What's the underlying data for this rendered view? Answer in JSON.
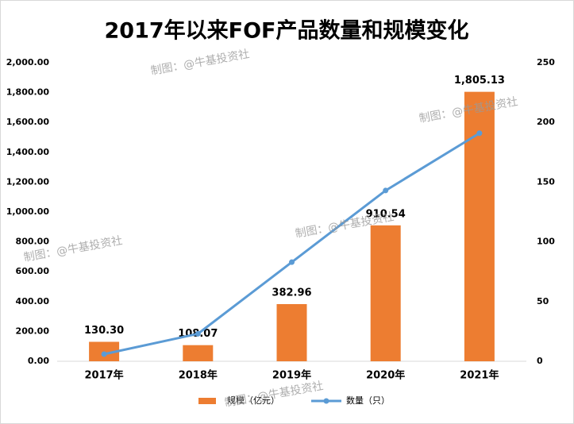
{
  "chart_data": {
    "type": "bar",
    "title": "2017年以来FOF产品数量和规模变化",
    "watermark": "制图：@牛基投资社",
    "categories": [
      "2017年",
      "2018年",
      "2019年",
      "2020年",
      "2021年"
    ],
    "series": [
      {
        "name": "规模（亿元）",
        "type": "bar",
        "color": "#ed7d31",
        "values": [
          130.3,
          108.07,
          382.96,
          910.54,
          1805.13
        ],
        "value_labels": [
          "130.30",
          "108.07",
          "382.96",
          "910.54",
          "1,805.13"
        ]
      },
      {
        "name": "数量（只）",
        "type": "line",
        "axis": "y2",
        "color": "#5b9bd5",
        "values": [
          6,
          23,
          83,
          143,
          191
        ]
      }
    ],
    "ylim": [
      0,
      2000
    ],
    "yticks": [
      {
        "value": 0,
        "label": "0.00"
      },
      {
        "value": 200,
        "label": "200.00"
      },
      {
        "value": 400,
        "label": "400.00"
      },
      {
        "value": 600,
        "label": "600.00"
      },
      {
        "value": 800,
        "label": "800.00"
      },
      {
        "value": 1000,
        "label": "1,000.00"
      },
      {
        "value": 1200,
        "label": "1,200.00"
      },
      {
        "value": 1400,
        "label": "1,400.00"
      },
      {
        "value": 1600,
        "label": "1,600.00"
      },
      {
        "value": 1800,
        "label": "1,800.00"
      },
      {
        "value": 2000,
        "label": "2,000.00"
      }
    ],
    "y2lim": [
      0,
      250
    ],
    "y2ticks": [
      0,
      50,
      100,
      150,
      200,
      250
    ],
    "grid": false,
    "legend": "bottom"
  }
}
